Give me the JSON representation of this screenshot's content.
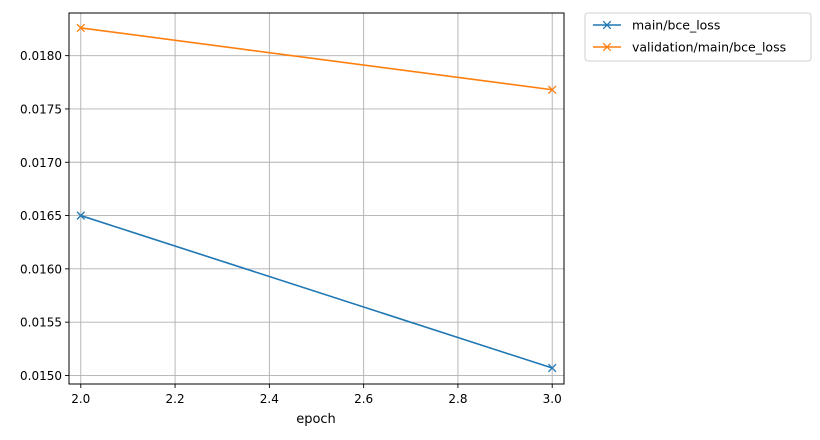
{
  "chart_data": {
    "type": "line",
    "title": "",
    "xlabel": "epoch",
    "ylabel": "",
    "xlim": [
      1.975,
      3.025
    ],
    "ylim": [
      0.01492,
      0.0184
    ],
    "x_ticks": [
      2.0,
      2.2,
      2.4,
      2.6,
      2.8,
      3.0
    ],
    "x_tick_labels": [
      "2.0",
      "2.2",
      "2.4",
      "2.6",
      "2.8",
      "3.0"
    ],
    "y_ticks": [
      0.015,
      0.0155,
      0.016,
      0.0165,
      0.017,
      0.0175,
      0.018
    ],
    "y_tick_labels": [
      "0.0150",
      "0.0155",
      "0.0160",
      "0.0165",
      "0.0170",
      "0.0175",
      "0.0180"
    ],
    "grid": true,
    "legend_position": "outside top-right",
    "marker": "x",
    "series": [
      {
        "name": "main/bce_loss",
        "color": "#1f77b4",
        "x": [
          2.0,
          3.0
        ],
        "y": [
          0.0165,
          0.01507
        ]
      },
      {
        "name": "validation/main/bce_loss",
        "color": "#ff7f0e",
        "x": [
          2.0,
          3.0
        ],
        "y": [
          0.01826,
          0.01768
        ]
      }
    ]
  }
}
